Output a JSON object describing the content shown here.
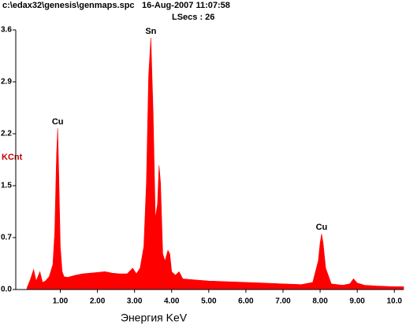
{
  "header": {
    "file": "c:\\edax32\\genesis\\genmaps.spc",
    "date": "16-Aug-2007 11:07:58",
    "lsecs": "LSecs : 26"
  },
  "chart_data": {
    "type": "area",
    "y_label": "KCnt",
    "x_label": "Энергия KeV",
    "color": "#ff0000",
    "xlim": [
      -0.2,
      10.25
    ],
    "ylim": [
      0,
      3.64
    ],
    "xticks": [
      {
        "value": 1,
        "label": "1.00"
      },
      {
        "value": 2,
        "label": "2.00"
      },
      {
        "value": 3,
        "label": "3.00"
      },
      {
        "value": 4,
        "label": "4.00"
      },
      {
        "value": 5,
        "label": "5.00"
      },
      {
        "value": 6,
        "label": "6.00"
      },
      {
        "value": 7,
        "label": "7.00"
      },
      {
        "value": 8,
        "label": "8.00"
      },
      {
        "value": 9,
        "label": "9.00"
      },
      {
        "value": 10,
        "label": "10.0"
      }
    ],
    "yticks": [
      {
        "value": 0,
        "label": "0.0"
      },
      {
        "value": 0.728,
        "label": "0.7"
      },
      {
        "value": 1.456,
        "label": "1.5"
      },
      {
        "value": 2.184,
        "label": "2.2"
      },
      {
        "value": 2.912,
        "label": "2.9"
      },
      {
        "value": 3.64,
        "label": "3.6"
      }
    ],
    "x": [
      0.1,
      0.2,
      0.28,
      0.35,
      0.45,
      0.52,
      0.6,
      0.7,
      0.8,
      0.85,
      0.9,
      0.93,
      0.96,
      1.0,
      1.05,
      1.1,
      1.2,
      1.4,
      1.6,
      1.8,
      2.0,
      2.2,
      2.4,
      2.6,
      2.8,
      2.95,
      3.05,
      3.15,
      3.25,
      3.32,
      3.38,
      3.44,
      3.5,
      3.56,
      3.62,
      3.66,
      3.7,
      3.76,
      3.82,
      3.9,
      3.95,
      4.0,
      4.1,
      4.2,
      4.3,
      4.5,
      5.0,
      5.5,
      6.0,
      6.5,
      7.0,
      7.5,
      7.8,
      7.95,
      8.0,
      8.04,
      8.08,
      8.15,
      8.3,
      8.6,
      8.8,
      8.9,
      9.0,
      9.2,
      9.5,
      10.0,
      10.25
    ],
    "values": [
      0.02,
      0.15,
      0.28,
      0.12,
      0.25,
      0.1,
      0.12,
      0.18,
      0.35,
      0.8,
      1.9,
      2.26,
      1.6,
      0.6,
      0.25,
      0.18,
      0.17,
      0.2,
      0.22,
      0.23,
      0.24,
      0.25,
      0.23,
      0.22,
      0.22,
      0.3,
      0.22,
      0.3,
      0.6,
      1.5,
      3.0,
      3.53,
      2.5,
      1.0,
      1.2,
      1.74,
      1.5,
      0.5,
      0.4,
      0.55,
      0.5,
      0.25,
      0.2,
      0.25,
      0.15,
      0.14,
      0.12,
      0.11,
      0.1,
      0.09,
      0.08,
      0.07,
      0.1,
      0.4,
      0.65,
      0.78,
      0.65,
      0.3,
      0.08,
      0.06,
      0.08,
      0.15,
      0.09,
      0.06,
      0.05,
      0.04,
      0.04
    ],
    "annotations": [
      {
        "text": "Cu",
        "x": 0.93
      },
      {
        "text": "Sn",
        "x": 3.44
      },
      {
        "text": "Cu",
        "x": 8.04
      }
    ]
  }
}
